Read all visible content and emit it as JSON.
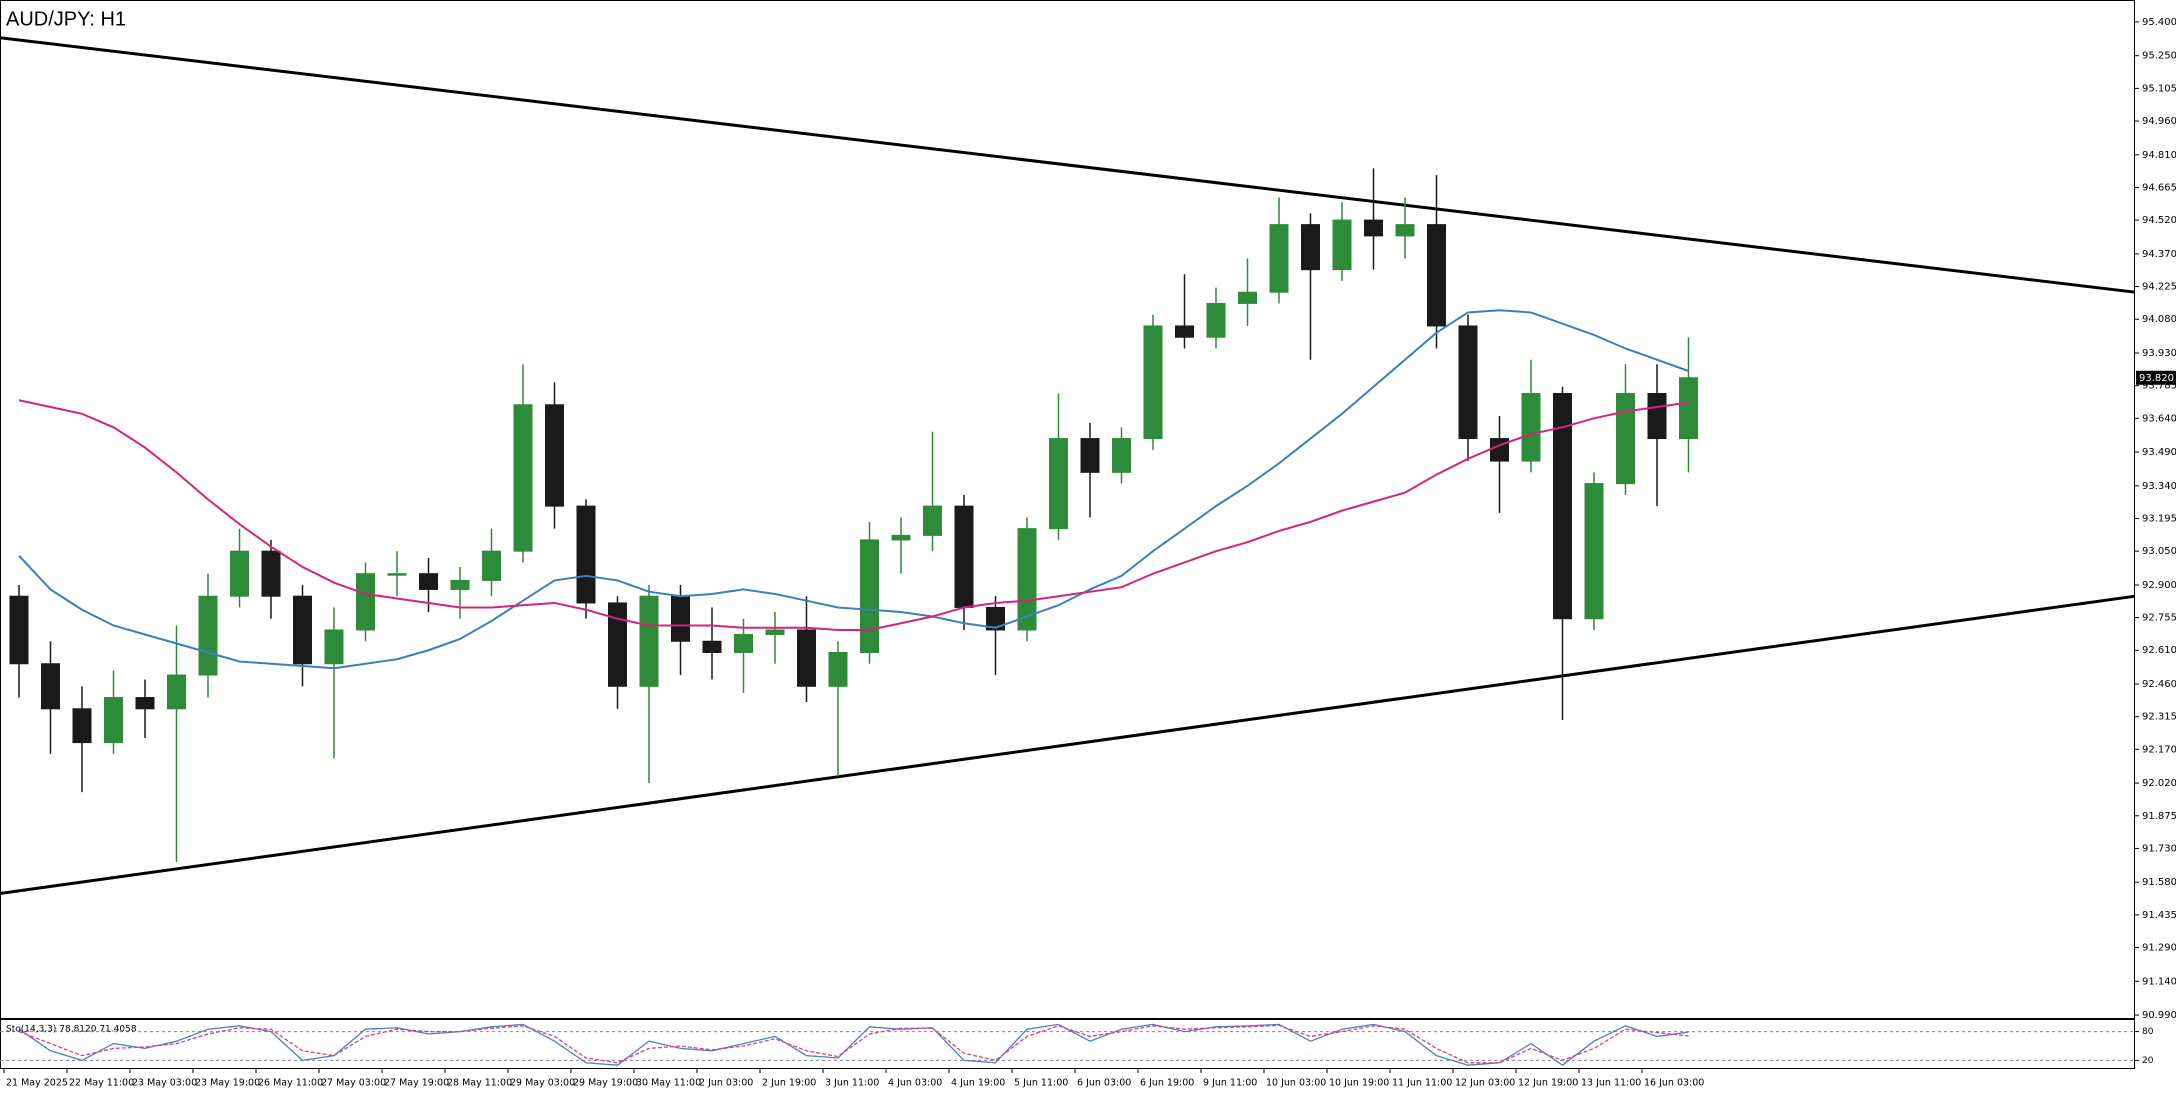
{
  "chart_data": [
    {
      "type": "candlestick",
      "title": "AUD/JPY: H1",
      "categories": [
        "21 May 2025",
        null,
        "22 May 11:00",
        null,
        "23 May 03:00",
        null,
        "23 May 19:00",
        null,
        "26 May 11:00",
        null,
        "27 May 03:00",
        null,
        "27 May 19:00",
        null,
        "28 May 11:00",
        null,
        "29 May 03:00",
        null,
        "29 May 19:00",
        null,
        "30 May 11:00",
        null,
        "2 Jun 03:00",
        null,
        "2 Jun 19:00",
        null,
        "3 Jun 11:00",
        null,
        "4 Jun 03:00",
        null,
        "4 Jun 19:00",
        null,
        "5 Jun 11:00",
        null,
        "6 Jun 03:00",
        null,
        "6 Jun 19:00",
        null,
        "9 Jun 11:00",
        null,
        "10 Jun 03:00",
        null,
        "10 Jun 19:00",
        null,
        "11 Jun 11:00",
        null,
        "12 Jun 03:00",
        null,
        "12 Jun 19:00",
        null,
        "13 Jun 11:00",
        null,
        "16 Jun 03:00",
        null
      ],
      "open": [
        92.85,
        92.55,
        92.35,
        92.2,
        92.4,
        92.35,
        92.5,
        92.85,
        93.05,
        92.85,
        92.55,
        92.7,
        92.95,
        92.95,
        92.88,
        92.92,
        93.05,
        93.7,
        93.25,
        92.82,
        92.45,
        92.85,
        92.65,
        92.6,
        92.68,
        92.7,
        92.45,
        92.6,
        93.1,
        93.12,
        93.25,
        92.8,
        92.7,
        93.15,
        93.55,
        93.4,
        93.55,
        94.05,
        94.0,
        94.15,
        94.2,
        94.5,
        94.3,
        94.52,
        94.45,
        94.5,
        94.05,
        93.55,
        93.45,
        93.75,
        92.75,
        93.35,
        93.75,
        93.55
      ],
      "high": [
        92.9,
        92.65,
        92.45,
        92.52,
        92.48,
        92.72,
        92.95,
        93.15,
        93.1,
        92.9,
        92.8,
        93.0,
        93.05,
        93.02,
        92.98,
        93.15,
        93.88,
        93.8,
        93.28,
        92.85,
        92.9,
        92.9,
        92.8,
        92.75,
        92.78,
        92.85,
        92.65,
        93.18,
        93.2,
        93.58,
        93.3,
        92.85,
        93.2,
        93.75,
        93.62,
        93.6,
        94.1,
        94.28,
        94.22,
        94.35,
        94.62,
        94.55,
        94.6,
        94.75,
        94.62,
        94.72,
        94.1,
        93.65,
        93.9,
        93.78,
        93.4,
        93.88,
        93.88,
        94.0
      ],
      "low": [
        92.4,
        92.15,
        91.98,
        92.15,
        92.22,
        91.67,
        92.4,
        92.8,
        92.75,
        92.45,
        92.13,
        92.65,
        92.85,
        92.78,
        92.75,
        92.85,
        93.0,
        93.15,
        92.75,
        92.35,
        92.02,
        92.5,
        92.48,
        92.42,
        92.55,
        92.38,
        92.05,
        92.55,
        92.95,
        93.05,
        92.7,
        92.5,
        92.65,
        93.1,
        93.2,
        93.35,
        93.5,
        93.95,
        93.95,
        94.05,
        94.15,
        93.9,
        94.25,
        94.3,
        94.35,
        93.95,
        93.45,
        93.22,
        93.4,
        92.3,
        92.7,
        93.3,
        93.25,
        93.4
      ],
      "close": [
        92.55,
        92.35,
        92.2,
        92.4,
        92.35,
        92.5,
        92.85,
        93.05,
        92.85,
        92.55,
        92.7,
        92.95,
        92.95,
        92.88,
        92.92,
        93.05,
        93.7,
        93.25,
        92.82,
        92.45,
        92.85,
        92.65,
        92.6,
        92.68,
        92.7,
        92.45,
        92.6,
        93.1,
        93.12,
        93.25,
        92.8,
        92.7,
        93.15,
        93.55,
        93.4,
        93.55,
        94.05,
        94.0,
        94.15,
        94.2,
        94.5,
        94.3,
        94.52,
        94.45,
        94.5,
        94.05,
        93.55,
        93.45,
        93.75,
        92.75,
        93.35,
        93.75,
        93.55,
        93.82
      ],
      "up_color": "#2e8b3a",
      "down_color": "#1a1a1a",
      "series": [
        {
          "color": "#3a7fc0",
          "values": [
            93.03,
            92.88,
            92.79,
            92.72,
            92.68,
            92.64,
            92.6,
            92.56,
            92.55,
            92.54,
            92.53,
            92.55,
            92.57,
            92.61,
            92.66,
            92.74,
            92.83,
            92.92,
            92.94,
            92.92,
            92.87,
            92.85,
            92.86,
            92.88,
            92.86,
            92.83,
            92.8,
            92.79,
            92.78,
            92.76,
            92.73,
            92.71,
            92.76,
            92.81,
            92.88,
            92.94,
            93.05,
            93.15,
            93.25,
            93.34,
            93.44,
            93.55,
            93.66,
            93.78,
            93.9,
            94.02,
            94.11,
            94.12,
            94.11,
            94.06,
            94.01,
            93.95,
            93.9,
            93.85
          ]
        },
        {
          "color": "#d6247a",
          "values": [
            93.72,
            93.69,
            93.66,
            93.6,
            93.51,
            93.4,
            93.28,
            93.17,
            93.07,
            92.98,
            92.91,
            92.86,
            92.84,
            92.82,
            92.8,
            92.8,
            92.81,
            92.82,
            92.79,
            92.75,
            92.72,
            92.72,
            92.72,
            92.71,
            92.71,
            92.71,
            92.7,
            92.7,
            92.73,
            92.76,
            92.8,
            92.82,
            92.83,
            92.85,
            92.87,
            92.89,
            92.95,
            93.0,
            93.05,
            93.09,
            93.14,
            93.18,
            93.23,
            93.27,
            93.31,
            93.39,
            93.46,
            93.52,
            93.57,
            93.6,
            93.64,
            93.67,
            93.69,
            93.71
          ]
        }
      ],
      "trendlines": [
        [
          95.33,
          94.2
        ],
        [
          91.53,
          92.85
        ]
      ],
      "trendline_color": "#000000",
      "current_price": {
        "value": 93.82,
        "label": "93.820"
      },
      "ylim": [
        90.977,
        95.493
      ],
      "yticks": [
        {
          "value": 95.4,
          "label": "95.400"
        },
        {
          "value": 95.25,
          "label": "95.250"
        },
        95.105,
        {
          "value": 94.96,
          "label": "94.960"
        },
        {
          "value": 94.81,
          "label": "94.810"
        },
        94.665,
        {
          "value": 94.52,
          "label": "94.520"
        },
        {
          "value": 94.37,
          "label": "94.370"
        },
        94.225,
        {
          "value": 94.08,
          "label": "94.080"
        },
        {
          "value": 93.93,
          "label": "93.930"
        },
        93.785,
        {
          "value": 93.64,
          "label": "93.640"
        },
        {
          "value": 93.49,
          "label": "93.490"
        },
        {
          "value": 93.34,
          "label": "93.340"
        },
        93.195,
        {
          "value": 93.05,
          "label": "93.050"
        },
        {
          "value": 92.9,
          "label": "92.900"
        },
        92.755,
        {
          "value": 92.61,
          "label": "92.610"
        },
        {
          "value": 92.46,
          "label": "92.460"
        },
        92.315,
        {
          "value": 92.17,
          "label": "92.170"
        },
        {
          "value": 92.02,
          "label": "92.020"
        },
        91.875,
        {
          "value": 91.73,
          "label": "91.730"
        },
        {
          "value": 91.58,
          "label": "91.580"
        },
        91.435,
        {
          "value": 91.29,
          "label": "91.290"
        },
        {
          "value": 91.14,
          "label": "91.140"
        },
        {
          "value": 90.99,
          "label": "90.990"
        }
      ],
      "grid": false
    },
    {
      "type": "line",
      "title": "Sto(14,3,3) 78.8120 71.4058",
      "series": [
        {
          "color": "#4a7fd0",
          "values": [
            85,
            40,
            20,
            55,
            45,
            60,
            85,
            92,
            80,
            20,
            30,
            85,
            88,
            75,
            80,
            90,
            95,
            60,
            15,
            10,
            60,
            45,
            40,
            55,
            70,
            30,
            25,
            90,
            85,
            88,
            20,
            15,
            85,
            95,
            60,
            85,
            95,
            80,
            90,
            92,
            95,
            60,
            85,
            95,
            80,
            30,
            10,
            15,
            55,
            10,
            60,
            92,
            70,
            79
          ]
        },
        {
          "color": "#e0407a",
          "dashed": true,
          "values": [
            80,
            55,
            30,
            45,
            48,
            55,
            75,
            88,
            85,
            40,
            30,
            70,
            85,
            80,
            80,
            87,
            92,
            70,
            25,
            15,
            45,
            50,
            42,
            50,
            65,
            40,
            28,
            75,
            87,
            87,
            35,
            20,
            70,
            92,
            70,
            80,
            92,
            85,
            88,
            90,
            93,
            70,
            80,
            92,
            85,
            45,
            15,
            15,
            45,
            20,
            45,
            85,
            78,
            71
          ]
        }
      ],
      "ylim": [
        0,
        100
      ],
      "yticks": [
        20,
        80
      ],
      "grid": true
    }
  ]
}
